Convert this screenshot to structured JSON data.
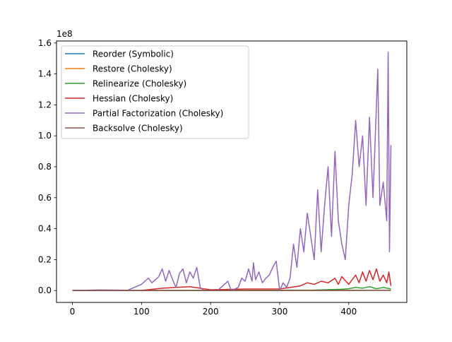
{
  "chart_data": {
    "type": "line",
    "title": "",
    "xlabel": "",
    "ylabel": "",
    "y_offset_label": "1e8",
    "xlim": [
      -23,
      484
    ],
    "ylim": [
      -0.0768,
      1.6128
    ],
    "x_ticks": [
      0,
      100,
      200,
      300,
      400
    ],
    "x_tick_labels": [
      "0",
      "100",
      "200",
      "300",
      "400"
    ],
    "y_ticks": [
      0.0,
      0.2,
      0.4,
      0.6,
      0.8,
      1.0,
      1.2,
      1.4,
      1.6
    ],
    "y_tick_labels": [
      "0.0",
      "0.2",
      "0.4",
      "0.6",
      "0.8",
      "1.0",
      "1.2",
      "1.4",
      "1.6"
    ],
    "grid": false,
    "legend_position": "top-left",
    "series": [
      {
        "name": "Reorder (Symbolic)",
        "color": "#1f77b4",
        "x": [
          0,
          100,
          200,
          300,
          350,
          400,
          430,
          461
        ],
        "y": [
          0.0005,
          0.0005,
          0.0006,
          0.0007,
          0.0008,
          0.001,
          0.0012,
          0.0012
        ]
      },
      {
        "name": "Restore (Cholesky)",
        "color": "#ff7f0e",
        "x": [
          0,
          100,
          200,
          300,
          350,
          400,
          430,
          461
        ],
        "y": [
          0.0005,
          0.0005,
          0.0006,
          0.0008,
          0.001,
          0.0015,
          0.0018,
          0.002
        ]
      },
      {
        "name": "Relinearize (Cholesky)",
        "color": "#2ca02c",
        "x": [
          0,
          100,
          200,
          300,
          350,
          390,
          400,
          410,
          420,
          430,
          440,
          450,
          461
        ],
        "y": [
          0.0008,
          0.001,
          0.0012,
          0.002,
          0.003,
          0.008,
          0.012,
          0.02,
          0.015,
          0.025,
          0.012,
          0.02,
          0.01
        ]
      },
      {
        "name": "Hessian (Cholesky)",
        "color": "#d62728",
        "x": [
          0,
          100,
          130,
          150,
          170,
          200,
          250,
          300,
          330,
          340,
          350,
          360,
          370,
          380,
          385,
          390,
          400,
          410,
          415,
          420,
          425,
          430,
          435,
          440,
          445,
          450,
          455,
          458,
          461
        ],
        "y": [
          0.0005,
          0.001,
          0.015,
          0.02,
          0.025,
          0.005,
          0.01,
          0.01,
          0.03,
          0.05,
          0.04,
          0.06,
          0.05,
          0.08,
          0.04,
          0.09,
          0.04,
          0.1,
          0.05,
          0.12,
          0.06,
          0.13,
          0.07,
          0.14,
          0.06,
          0.1,
          0.05,
          0.12,
          0.03
        ]
      },
      {
        "name": "Partial Factorization (Cholesky)",
        "color": "#9467bd",
        "x": [
          0,
          40,
          80,
          95,
          100,
          105,
          110,
          115,
          120,
          125,
          128,
          130,
          135,
          140,
          145,
          150,
          155,
          160,
          165,
          170,
          175,
          180,
          185,
          190,
          200,
          210,
          220,
          225,
          230,
          240,
          245,
          250,
          255,
          260,
          262,
          265,
          270,
          275,
          280,
          285,
          290,
          295,
          300,
          305,
          310,
          315,
          320,
          325,
          330,
          335,
          340,
          345,
          350,
          355,
          360,
          365,
          370,
          375,
          380,
          385,
          390,
          395,
          400,
          405,
          410,
          415,
          420,
          425,
          430,
          435,
          438,
          442,
          445,
          450,
          455,
          457,
          459,
          461
        ],
        "y": [
          0.0,
          0.004,
          0.002,
          0.03,
          0.04,
          0.06,
          0.08,
          0.05,
          0.07,
          0.09,
          0.12,
          0.14,
          0.06,
          0.13,
          0.07,
          0.02,
          0.11,
          0.14,
          0.05,
          0.12,
          0.08,
          0.15,
          0.02,
          0.0,
          0.0,
          0.0,
          0.04,
          0.06,
          0.0,
          0.02,
          0.08,
          0.06,
          0.14,
          0.06,
          0.18,
          0.07,
          0.12,
          0.05,
          0.08,
          0.1,
          0.15,
          0.19,
          0.0,
          0.05,
          0.02,
          0.08,
          0.3,
          0.15,
          0.4,
          0.25,
          0.5,
          0.35,
          0.2,
          0.65,
          0.25,
          0.55,
          0.8,
          0.35,
          0.9,
          0.45,
          0.3,
          0.2,
          0.55,
          0.75,
          1.1,
          0.8,
          1.0,
          0.55,
          1.12,
          0.6,
          0.95,
          1.43,
          0.55,
          0.7,
          0.45,
          1.54,
          0.25,
          0.94
        ]
      },
      {
        "name": "Backsolve (Cholesky)",
        "color": "#8c564b",
        "x": [
          0,
          100,
          200,
          300,
          350,
          400,
          420,
          440,
          461
        ],
        "y": [
          0.0003,
          0.0004,
          0.0005,
          0.0006,
          0.0008,
          0.001,
          0.0012,
          0.0012,
          0.0012
        ]
      }
    ]
  }
}
